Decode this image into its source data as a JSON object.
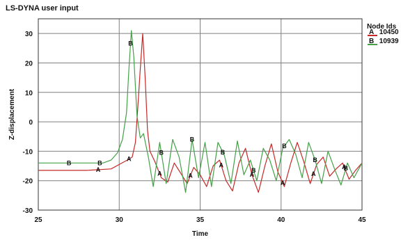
{
  "chart_data": {
    "type": "line",
    "title": "LS-DYNA user input",
    "xlabel": "Time",
    "ylabel": "Z-displacement",
    "xlim": [
      25,
      45
    ],
    "ylim": [
      -30,
      35
    ],
    "xticks": [
      25,
      30,
      35,
      40,
      45
    ],
    "yticks": [
      -30,
      -20,
      -10,
      0,
      10,
      20,
      30
    ],
    "grid": true,
    "legend": {
      "title": "Node Ids",
      "position": "right"
    },
    "series": [
      {
        "name": "10450",
        "marker": "A",
        "color": "#c62828",
        "x": [
          25,
          28,
          29.5,
          30.0,
          30.5,
          30.8,
          31.0,
          31.15,
          31.3,
          31.45,
          31.6,
          31.75,
          31.9,
          32.2,
          32.6,
          33.0,
          33.4,
          33.8,
          34.2,
          34.6,
          35.0,
          35.4,
          35.8,
          36.2,
          36.6,
          37.0,
          37.4,
          37.8,
          38.2,
          38.6,
          39.0,
          39.4,
          39.8,
          40.2,
          40.6,
          41.0,
          41.4,
          41.8,
          42.2,
          42.6,
          43.0,
          43.4,
          43.8,
          44.2,
          44.6,
          45.0
        ],
        "y": [
          -16.5,
          -16.5,
          -16.0,
          -14.5,
          -13.0,
          -12.0,
          -7.0,
          5.0,
          18.0,
          30.0,
          15.0,
          -3.0,
          -10.0,
          -13.5,
          -19.0,
          -20.5,
          -14.0,
          -17.5,
          -21.0,
          -15.5,
          -18.0,
          -22.0,
          -15.0,
          -13.0,
          -20.0,
          -23.5,
          -14.0,
          -9.0,
          -18.0,
          -24.0,
          -15.0,
          -7.5,
          -17.0,
          -22.0,
          -14.0,
          -7.0,
          -13.5,
          -21.0,
          -14.5,
          -12.0,
          -18.5,
          -16.0,
          -14.0,
          -19.5,
          -16.5,
          -14.0
        ]
      },
      {
        "name": "10939",
        "marker": "B",
        "color": "#43a047",
        "x": [
          25,
          28,
          29.0,
          29.5,
          29.9,
          30.2,
          30.45,
          30.6,
          30.75,
          30.9,
          31.1,
          31.3,
          31.5,
          31.8,
          32.1,
          32.5,
          32.9,
          33.3,
          33.7,
          34.1,
          34.5,
          34.9,
          35.3,
          35.7,
          36.1,
          36.5,
          36.9,
          37.3,
          37.7,
          38.1,
          38.5,
          38.9,
          39.3,
          39.7,
          40.1,
          40.5,
          40.9,
          41.3,
          41.7,
          42.1,
          42.5,
          42.9,
          43.3,
          43.7,
          44.1,
          44.5,
          45.0
        ],
        "y": [
          -14.0,
          -14.0,
          -14.0,
          -13.0,
          -10.5,
          -6.0,
          3.0,
          18.0,
          31.0,
          22.0,
          2.0,
          -5.5,
          -4.0,
          -12.0,
          -22.0,
          -7.0,
          -21.0,
          -6.0,
          -12.0,
          -24.0,
          -6.0,
          -19.0,
          -7.0,
          -22.0,
          -7.0,
          -11.5,
          -21.0,
          -6.5,
          -18.0,
          -13.0,
          -20.0,
          -9.0,
          -13.0,
          -20.0,
          -9.0,
          -6.0,
          -11.0,
          -19.0,
          -7.0,
          -13.0,
          -21.0,
          -10.0,
          -16.0,
          -21.5,
          -14.0,
          -19.0,
          -14.0
        ]
      }
    ]
  }
}
